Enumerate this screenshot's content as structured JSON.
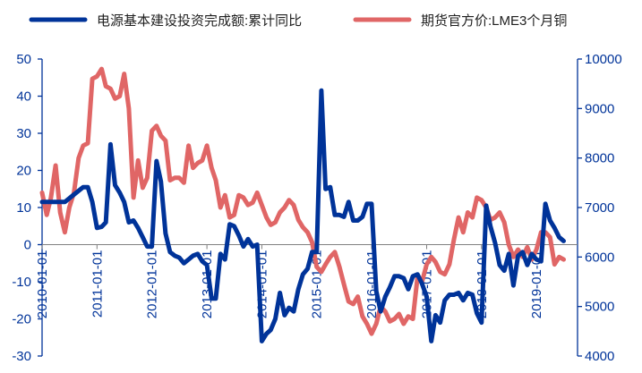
{
  "chart_data": {
    "type": "line",
    "title": "",
    "legend_position": "top",
    "axes": {
      "left": {
        "ylim": [
          -30,
          50
        ],
        "ticks": [
          "-30",
          "-20",
          "-10",
          "0",
          "10",
          "20",
          "30",
          "40",
          "50"
        ]
      },
      "right": {
        "ylim": [
          4000,
          10000
        ],
        "ticks": [
          "4000",
          "5000",
          "6000",
          "7000",
          "8000",
          "9000",
          "10000"
        ]
      },
      "x": {
        "xlim": [
          "2010-01-01",
          "2019-10-01"
        ],
        "ticks": [
          "2010-01-01",
          "2011-01-01",
          "2012-01-01",
          "2013-01-01",
          "2014-01-01",
          "2015-01-01",
          "2016-01-01",
          "2017-01-01",
          "2018-01-01",
          "2019-01-01"
        ]
      }
    },
    "series": [
      {
        "name": "电源基本建设投资完成额:累计同比",
        "axis": "left",
        "color": "#003399",
        "points": [
          [
            "2010-01-01",
            11.5
          ],
          [
            "2010-04-01",
            11.5
          ],
          [
            "2010-06-01",
            11.5
          ],
          [
            "2010-08-01",
            13.5
          ],
          [
            "2010-10-01",
            15.5
          ],
          [
            "2010-11-01",
            15.5
          ],
          [
            "2010-12-01",
            11.5
          ],
          [
            "2011-01-01",
            4.5
          ],
          [
            "2011-02-01",
            4.8
          ],
          [
            "2011-03-01",
            6.0
          ],
          [
            "2011-04-01",
            27.0
          ],
          [
            "2011-05-01",
            16.0
          ],
          [
            "2011-06-01",
            14.0
          ],
          [
            "2011-07-01",
            11.5
          ],
          [
            "2011-08-01",
            6.0
          ],
          [
            "2011-09-01",
            6.5
          ],
          [
            "2011-10-01",
            4.5
          ],
          [
            "2011-11-01",
            2.0
          ],
          [
            "2011-12-01",
            -0.5
          ],
          [
            "2012-01-01",
            -0.5
          ],
          [
            "2012-02-01",
            22.5
          ],
          [
            "2012-03-01",
            17.0
          ],
          [
            "2012-04-01",
            3.0
          ],
          [
            "2012-05-01",
            -2.0
          ],
          [
            "2012-06-01",
            -3.0
          ],
          [
            "2012-07-01",
            -3.5
          ],
          [
            "2012-08-01",
            -5.0
          ],
          [
            "2012-09-01",
            -4.0
          ],
          [
            "2012-10-01",
            -3.0
          ],
          [
            "2012-11-01",
            -2.5
          ],
          [
            "2012-12-01",
            -4.5
          ],
          [
            "2013-01-01",
            -5.5
          ],
          [
            "2013-02-01",
            -14.5
          ],
          [
            "2013-03-01",
            -14.5
          ],
          [
            "2013-04-01",
            -2.5
          ],
          [
            "2013-05-01",
            -4.0
          ],
          [
            "2013-06-01",
            5.5
          ],
          [
            "2013-07-01",
            5.0
          ],
          [
            "2013-08-01",
            2.5
          ],
          [
            "2013-09-01",
            -0.5
          ],
          [
            "2013-10-01",
            1.5
          ],
          [
            "2013-11-01",
            -0.5
          ],
          [
            "2013-12-01",
            0.0
          ],
          [
            "2014-01-01",
            -26.0
          ],
          [
            "2014-02-01",
            -24.0
          ],
          [
            "2014-03-01",
            -23.0
          ],
          [
            "2014-04-01",
            -20.0
          ],
          [
            "2014-05-01",
            -13.0
          ],
          [
            "2014-06-01",
            -19.0
          ],
          [
            "2014-07-01",
            -17.0
          ],
          [
            "2014-08-01",
            -18.0
          ],
          [
            "2014-09-01",
            -12.0
          ],
          [
            "2014-10-01",
            -8.0
          ],
          [
            "2014-11-01",
            -6.5
          ],
          [
            "2014-12-01",
            -2.0
          ],
          [
            "2015-01-01",
            -2.0
          ],
          [
            "2015-02-01",
            41.5
          ],
          [
            "2015-03-01",
            15.0
          ],
          [
            "2015-04-01",
            15.5
          ],
          [
            "2015-05-01",
            8.0
          ],
          [
            "2015-06-01",
            8.0
          ],
          [
            "2015-07-01",
            7.5
          ],
          [
            "2015-08-01",
            11.5
          ],
          [
            "2015-09-01",
            6.5
          ],
          [
            "2015-10-01",
            6.5
          ],
          [
            "2015-11-01",
            7.5
          ],
          [
            "2015-12-01",
            11.0
          ],
          [
            "2016-01-01",
            11.0
          ],
          [
            "2016-02-01",
            -12.5
          ],
          [
            "2016-03-01",
            -18.0
          ],
          [
            "2016-04-01",
            -14.0
          ],
          [
            "2016-05-01",
            -11.5
          ],
          [
            "2016-06-01",
            -8.5
          ],
          [
            "2016-07-01",
            -8.5
          ],
          [
            "2016-08-01",
            -9.0
          ],
          [
            "2016-09-01",
            -12.0
          ],
          [
            "2016-10-01",
            -8.5
          ],
          [
            "2016-11-01",
            -8.0
          ],
          [
            "2016-12-01",
            -10.5
          ],
          [
            "2017-01-01",
            -14.0
          ],
          [
            "2017-02-01",
            -26.0
          ],
          [
            "2017-03-01",
            -19.0
          ],
          [
            "2017-04-01",
            -21.0
          ],
          [
            "2017-05-01",
            -15.0
          ],
          [
            "2017-06-01",
            -13.5
          ],
          [
            "2017-07-01",
            -13.5
          ],
          [
            "2017-08-01",
            -13.0
          ],
          [
            "2017-09-01",
            -15.0
          ],
          [
            "2017-10-01",
            -13.0
          ],
          [
            "2017-11-01",
            -13.5
          ],
          [
            "2017-12-01",
            -18.5
          ],
          [
            "2018-01-01",
            -21.0
          ],
          [
            "2018-02-01",
            10.5
          ],
          [
            "2018-03-01",
            5.0
          ],
          [
            "2018-04-01",
            0.5
          ],
          [
            "2018-05-01",
            -5.5
          ],
          [
            "2018-06-01",
            -7.0
          ],
          [
            "2018-07-01",
            -2.5
          ],
          [
            "2018-08-01",
            -11.0
          ],
          [
            "2018-09-01",
            -3.0
          ],
          [
            "2018-10-01",
            -2.0
          ],
          [
            "2018-11-01",
            -5.5
          ],
          [
            "2018-12-01",
            -2.5
          ],
          [
            "2019-01-01",
            -4.0
          ],
          [
            "2019-02-01",
            -4.5
          ],
          [
            "2019-03-01",
            11.0
          ],
          [
            "2019-04-01",
            6.5
          ],
          [
            "2019-05-01",
            4.5
          ],
          [
            "2019-06-01",
            2.0
          ],
          [
            "2019-07-01",
            1.0
          ]
        ]
      },
      {
        "name": "期货官方价:LME3个月铜",
        "axis": "right",
        "color": "#e06666",
        "points": [
          [
            "2010-01-01",
            7300
          ],
          [
            "2010-02-01",
            6850
          ],
          [
            "2010-03-01",
            7200
          ],
          [
            "2010-04-01",
            7850
          ],
          [
            "2010-05-01",
            6900
          ],
          [
            "2010-06-01",
            6500
          ],
          [
            "2010-07-01",
            7000
          ],
          [
            "2010-08-01",
            7300
          ],
          [
            "2010-09-01",
            8000
          ],
          [
            "2010-10-01",
            8250
          ],
          [
            "2010-11-01",
            8300
          ],
          [
            "2010-12-01",
            9600
          ],
          [
            "2011-01-01",
            9650
          ],
          [
            "2011-02-01",
            9800
          ],
          [
            "2011-03-01",
            9450
          ],
          [
            "2011-04-01",
            9400
          ],
          [
            "2011-05-01",
            9200
          ],
          [
            "2011-06-01",
            9250
          ],
          [
            "2011-07-01",
            9700
          ],
          [
            "2011-08-01",
            9000
          ],
          [
            "2011-09-01",
            7200
          ],
          [
            "2011-10-01",
            7950
          ],
          [
            "2011-11-01",
            7400
          ],
          [
            "2011-12-01",
            7600
          ],
          [
            "2012-01-01",
            8550
          ],
          [
            "2012-02-01",
            8650
          ],
          [
            "2012-03-01",
            8450
          ],
          [
            "2012-04-01",
            8350
          ],
          [
            "2012-05-01",
            7550
          ],
          [
            "2012-06-01",
            7600
          ],
          [
            "2012-07-01",
            7600
          ],
          [
            "2012-08-01",
            7500
          ],
          [
            "2012-09-01",
            8250
          ],
          [
            "2012-10-01",
            7800
          ],
          [
            "2012-11-01",
            7900
          ],
          [
            "2012-12-01",
            7950
          ],
          [
            "2013-01-01",
            8250
          ],
          [
            "2013-02-01",
            7800
          ],
          [
            "2013-03-01",
            7550
          ],
          [
            "2013-04-01",
            7000
          ],
          [
            "2013-05-01",
            7250
          ],
          [
            "2013-06-01",
            6800
          ],
          [
            "2013-07-01",
            6850
          ],
          [
            "2013-08-01",
            7250
          ],
          [
            "2013-09-01",
            7200
          ],
          [
            "2013-10-01",
            7050
          ],
          [
            "2013-11-01",
            7100
          ],
          [
            "2013-12-01",
            7300
          ],
          [
            "2014-01-01",
            7050
          ],
          [
            "2014-02-01",
            6800
          ],
          [
            "2014-03-01",
            6650
          ],
          [
            "2014-04-01",
            6700
          ],
          [
            "2014-05-01",
            6900
          ],
          [
            "2014-06-01",
            7000
          ],
          [
            "2014-07-01",
            7150
          ],
          [
            "2014-08-01",
            7050
          ],
          [
            "2014-09-01",
            6750
          ],
          [
            "2014-10-01",
            6600
          ],
          [
            "2014-11-01",
            6500
          ],
          [
            "2014-12-01",
            6300
          ],
          [
            "2015-01-01",
            5800
          ],
          [
            "2015-02-01",
            5700
          ],
          [
            "2015-03-01",
            5850
          ],
          [
            "2015-04-01",
            6000
          ],
          [
            "2015-05-01",
            6100
          ],
          [
            "2015-06-01",
            5800
          ],
          [
            "2015-07-01",
            5450
          ],
          [
            "2015-08-01",
            5100
          ],
          [
            "2015-09-01",
            5050
          ],
          [
            "2015-10-01",
            5200
          ],
          [
            "2015-11-01",
            4800
          ],
          [
            "2015-12-01",
            4650
          ],
          [
            "2016-01-01",
            4450
          ],
          [
            "2016-02-01",
            4650
          ],
          [
            "2016-03-01",
            5000
          ],
          [
            "2016-04-01",
            4900
          ],
          [
            "2016-05-01",
            4700
          ],
          [
            "2016-06-01",
            4750
          ],
          [
            "2016-07-01",
            4850
          ],
          [
            "2016-08-01",
            4650
          ],
          [
            "2016-09-01",
            4800
          ],
          [
            "2016-10-01",
            4750
          ],
          [
            "2016-11-01",
            5600
          ],
          [
            "2016-12-01",
            5500
          ],
          [
            "2017-01-01",
            5850
          ],
          [
            "2017-02-01",
            6000
          ],
          [
            "2017-03-01",
            5900
          ],
          [
            "2017-04-01",
            5700
          ],
          [
            "2017-05-01",
            5650
          ],
          [
            "2017-06-01",
            5850
          ],
          [
            "2017-07-01",
            6350
          ],
          [
            "2017-08-01",
            6800
          ],
          [
            "2017-09-01",
            6500
          ],
          [
            "2017-10-01",
            6900
          ],
          [
            "2017-11-01",
            6800
          ],
          [
            "2017-12-01",
            7200
          ],
          [
            "2018-01-01",
            7150
          ],
          [
            "2018-02-01",
            7000
          ],
          [
            "2018-03-01",
            6750
          ],
          [
            "2018-04-01",
            6800
          ],
          [
            "2018-05-01",
            6900
          ],
          [
            "2018-06-01",
            6700
          ],
          [
            "2018-07-01",
            6250
          ],
          [
            "2018-08-01",
            6000
          ],
          [
            "2018-09-01",
            6150
          ],
          [
            "2018-10-01",
            6000
          ],
          [
            "2018-11-01",
            6200
          ],
          [
            "2018-12-01",
            5950
          ],
          [
            "2019-01-01",
            6150
          ],
          [
            "2019-02-01",
            6500
          ],
          [
            "2019-03-01",
            6500
          ],
          [
            "2019-04-01",
            6400
          ],
          [
            "2019-05-01",
            5850
          ],
          [
            "2019-06-01",
            6000
          ],
          [
            "2019-07-01",
            5950
          ]
        ]
      }
    ]
  }
}
